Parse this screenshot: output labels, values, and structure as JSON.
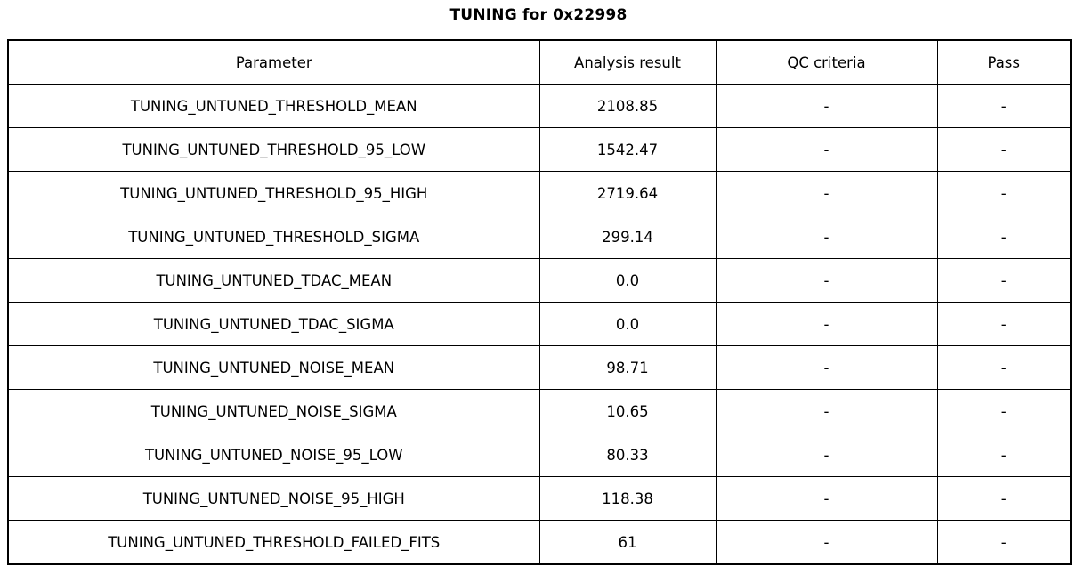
{
  "title": "TUNING for 0x22998",
  "colors": {
    "background": "#ffffff",
    "text": "#000000",
    "border": "#000000"
  },
  "chart_data": {
    "type": "table",
    "title": "TUNING for 0x22998",
    "columns": [
      "Parameter",
      "Analysis result",
      "QC criteria",
      "Pass"
    ],
    "rows": [
      [
        "TUNING_UNTUNED_THRESHOLD_MEAN",
        "2108.85",
        "-",
        "-"
      ],
      [
        "TUNING_UNTUNED_THRESHOLD_95_LOW",
        "1542.47",
        "-",
        "-"
      ],
      [
        "TUNING_UNTUNED_THRESHOLD_95_HIGH",
        "2719.64",
        "-",
        "-"
      ],
      [
        "TUNING_UNTUNED_THRESHOLD_SIGMA",
        "299.14",
        "-",
        "-"
      ],
      [
        "TUNING_UNTUNED_TDAC_MEAN",
        "0.0",
        "-",
        "-"
      ],
      [
        "TUNING_UNTUNED_TDAC_SIGMA",
        "0.0",
        "-",
        "-"
      ],
      [
        "TUNING_UNTUNED_NOISE_MEAN",
        "98.71",
        "-",
        "-"
      ],
      [
        "TUNING_UNTUNED_NOISE_SIGMA",
        "10.65",
        "-",
        "-"
      ],
      [
        "TUNING_UNTUNED_NOISE_95_LOW",
        "80.33",
        "-",
        "-"
      ],
      [
        "TUNING_UNTUNED_NOISE_95_HIGH",
        "118.38",
        "-",
        "-"
      ],
      [
        "TUNING_UNTUNED_THRESHOLD_FAILED_FITS",
        "61",
        "-",
        "-"
      ]
    ]
  }
}
